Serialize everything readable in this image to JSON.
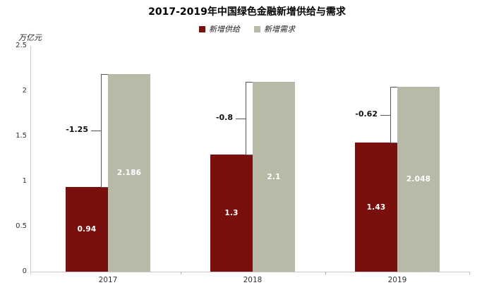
{
  "chart_data": {
    "type": "bar",
    "title": "2017-2019年中国绿色金融新增供给与需求",
    "unit": "万亿元",
    "categories": [
      "2017",
      "2018",
      "2019"
    ],
    "series": [
      {
        "name": "新增供给",
        "color": "#7a100d",
        "values": [
          0.94,
          1.3,
          1.43
        ],
        "labels": [
          "0.94",
          "1.3",
          "1.43"
        ]
      },
      {
        "name": "新增需求",
        "color": "#b9b9a8",
        "values": [
          2.186,
          2.1,
          2.048
        ],
        "labels": [
          "2.186",
          "2.1",
          "2.048"
        ]
      }
    ],
    "gap_annotations": [
      {
        "label": "-1.25",
        "value": -1.25
      },
      {
        "label": "-0.8",
        "value": -0.8
      },
      {
        "label": "-0.62",
        "value": -0.62
      }
    ],
    "y_ticks": [
      0,
      0.5,
      1,
      1.5,
      2,
      2.5
    ],
    "y_tick_labels": [
      "0",
      "0.5",
      "1",
      "1.5",
      "2",
      "2.5"
    ],
    "ylim": [
      0,
      2.5
    ],
    "grid": false,
    "legend_position": "top",
    "colors": {
      "supply_bar": "#7a100d",
      "demand_bar": "#b9b9a8",
      "axis": "#c8c8c8",
      "bracket": "#555555",
      "bar_label_text": "#ffffff",
      "title_text": "#000000"
    }
  }
}
